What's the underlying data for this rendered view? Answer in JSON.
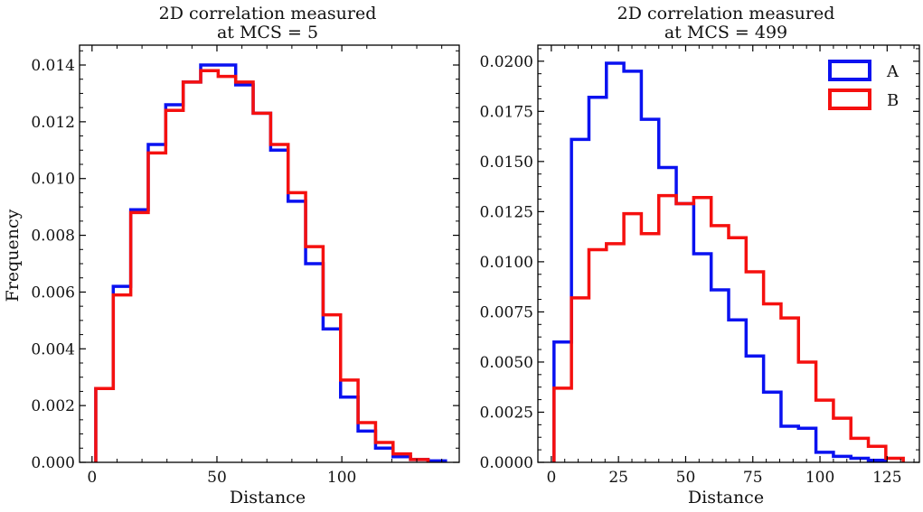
{
  "colors": {
    "A": "#0a12f0",
    "B": "#f5100f"
  },
  "chart_data": [
    {
      "type": "histogram",
      "title_line1": "2D correlation measured",
      "title_line2": "at MCS = 5",
      "xlabel": "Distance",
      "ylabel": "Frequency",
      "xlim": [
        -5,
        147
      ],
      "ylim": [
        0,
        0.0147
      ],
      "xticks": [
        0,
        50,
        100
      ],
      "yticks": [
        0.0,
        0.002,
        0.004,
        0.006,
        0.008,
        0.01,
        0.012,
        0.014
      ],
      "ytick_labels": [
        "0.000",
        "0.002",
        "0.004",
        "0.006",
        "0.008",
        "0.010",
        "0.012",
        "0.014"
      ],
      "grid": false,
      "series": [
        {
          "name": "A",
          "edges": [
            1.5,
            8.5,
            15.5,
            22.5,
            29.5,
            36.5,
            43.5,
            50.5,
            57.5,
            64.5,
            71.5,
            78.5,
            85.5,
            92.5,
            99.5,
            106.5,
            113.5,
            120.5,
            127.5,
            134.5,
            141.5
          ],
          "values": [
            0.0026,
            0.0062,
            0.0089,
            0.0112,
            0.0126,
            0.0134,
            0.014,
            0.014,
            0.0133,
            0.0123,
            0.011,
            0.0092,
            0.007,
            0.0047,
            0.0023,
            0.0011,
            0.0005,
            0.0002,
            0.0001,
            5e-05
          ]
        },
        {
          "name": "B",
          "edges": [
            1.5,
            8.5,
            15.5,
            22.5,
            29.5,
            36.5,
            43.5,
            50.5,
            57.5,
            64.5,
            71.5,
            78.5,
            85.5,
            92.5,
            99.5,
            106.5,
            113.5,
            120.5,
            127.5,
            134.5
          ],
          "values": [
            0.0026,
            0.0059,
            0.0088,
            0.0109,
            0.0124,
            0.0134,
            0.0138,
            0.0136,
            0.0134,
            0.0123,
            0.0112,
            0.0095,
            0.0076,
            0.0052,
            0.0029,
            0.0014,
            0.0007,
            0.0003,
            0.0001
          ]
        }
      ]
    },
    {
      "type": "histogram",
      "title_line1": "2D correlation measured",
      "title_line2": "at MCS = 499",
      "xlabel": "Distance",
      "ylabel": "",
      "xlim": [
        -5,
        137
      ],
      "ylim": [
        0,
        0.0208
      ],
      "xticks": [
        0,
        25,
        50,
        75,
        100,
        125
      ],
      "yticks": [
        0.0,
        0.0025,
        0.005,
        0.0075,
        0.01,
        0.0125,
        0.015,
        0.0175,
        0.02
      ],
      "ytick_labels": [
        "0.0000",
        "0.0025",
        "0.0050",
        "0.0075",
        "0.0100",
        "0.0125",
        "0.0150",
        "0.0175",
        "0.0200"
      ],
      "grid": false,
      "legend": "top-right",
      "series": [
        {
          "name": "A",
          "edges": [
            1.0,
            7.5,
            14.0,
            20.5,
            27.0,
            33.5,
            40.0,
            46.5,
            53.0,
            59.5,
            66.0,
            72.5,
            79.0,
            85.5,
            92.0,
            98.5,
            105.0,
            111.5,
            118.0,
            124.5
          ],
          "values": [
            0.006,
            0.0161,
            0.0182,
            0.0199,
            0.0195,
            0.0171,
            0.0147,
            0.0129,
            0.0104,
            0.0086,
            0.0071,
            0.0053,
            0.0035,
            0.0018,
            0.0017,
            0.0005,
            0.0003,
            0.0002,
            0.0001
          ]
        },
        {
          "name": "B",
          "edges": [
            1.0,
            7.5,
            14.0,
            20.5,
            27.0,
            33.5,
            40.0,
            46.5,
            53.0,
            59.5,
            66.0,
            72.5,
            79.0,
            85.5,
            92.0,
            98.5,
            105.0,
            111.5,
            118.0,
            124.5,
            131.0
          ],
          "values": [
            0.0037,
            0.0082,
            0.0106,
            0.0109,
            0.0124,
            0.0114,
            0.0133,
            0.0129,
            0.0132,
            0.0118,
            0.0112,
            0.0095,
            0.0079,
            0.0072,
            0.005,
            0.0031,
            0.0022,
            0.0012,
            0.0008,
            0.0002
          ]
        }
      ]
    }
  ]
}
